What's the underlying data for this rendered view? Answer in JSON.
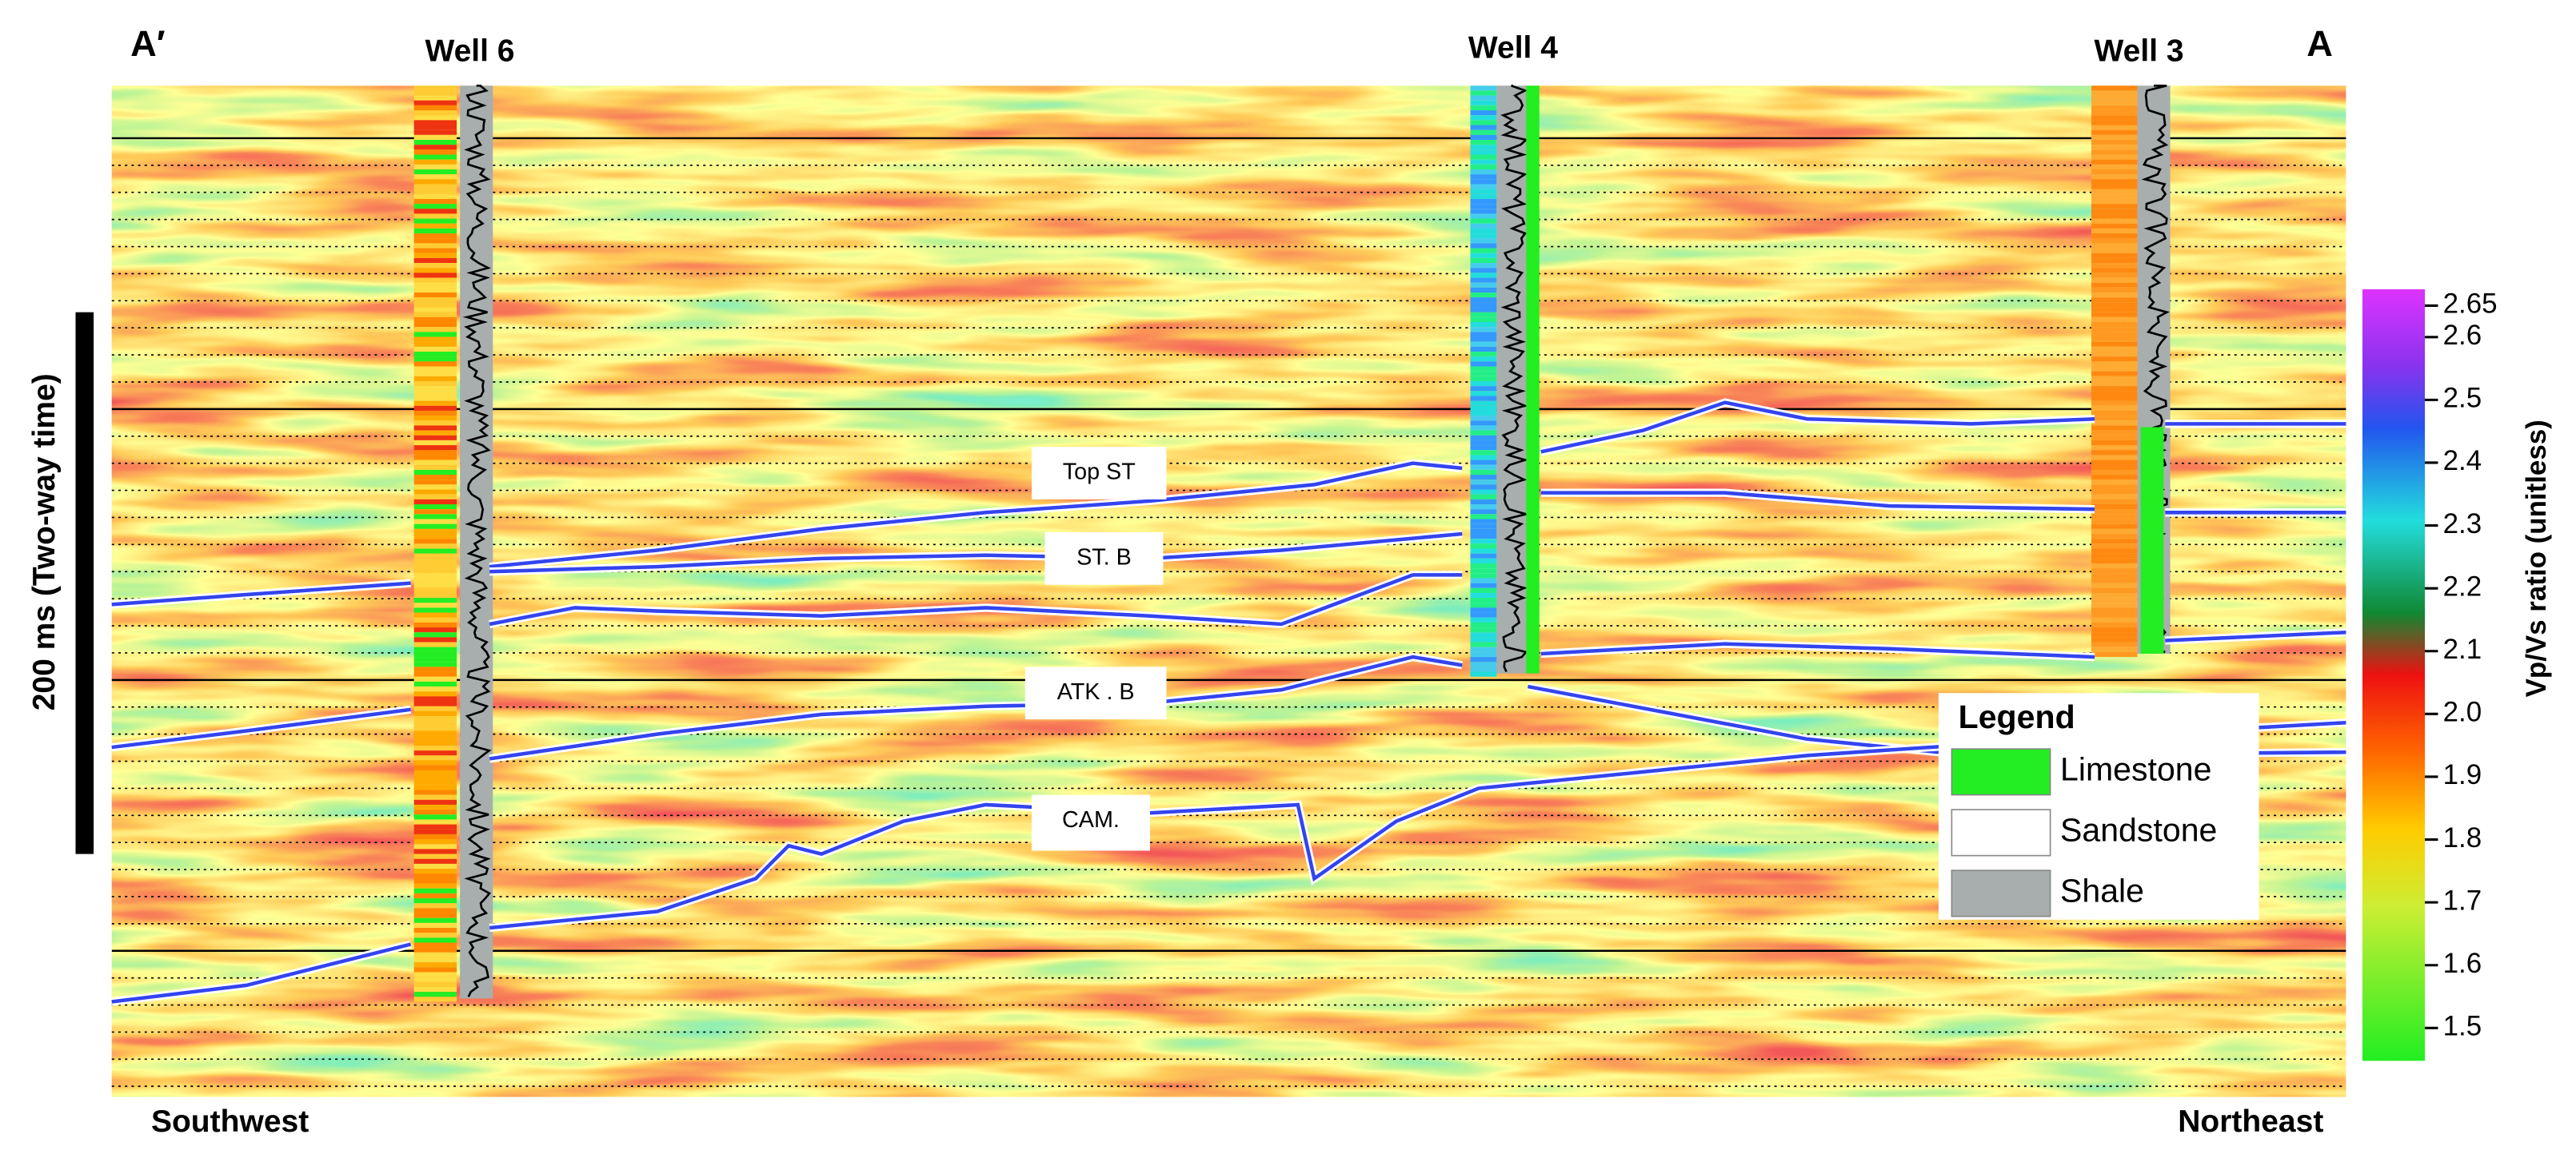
{
  "header": {
    "left_end": "A′",
    "right_end": "A",
    "wells": [
      "Well 6",
      "Well 4",
      "Well 3"
    ]
  },
  "directions": {
    "left": "Southwest",
    "right": "Northeast"
  },
  "time_scale_label": "200 ms (Two-way time)",
  "horizons": [
    "Top ST",
    "ST. B",
    "ATK . B",
    "CAM."
  ],
  "legend": {
    "title": "Legend",
    "items": [
      {
        "label": "Limestone",
        "color": "#22ee22"
      },
      {
        "label": "Sandstone",
        "color": "#ffffff"
      },
      {
        "label": "Shale",
        "color": "#a8aeae"
      }
    ]
  },
  "colorbar": {
    "label": "Vp/Vs ratio (unitless)",
    "ticks": [
      2.65,
      2.6,
      2.5,
      2.4,
      2.3,
      2.2,
      2.1,
      {
        "value": 2,
        "label": "2.0"
      },
      1.9,
      1.8,
      1.7,
      1.6,
      1.5
    ]
  }
}
